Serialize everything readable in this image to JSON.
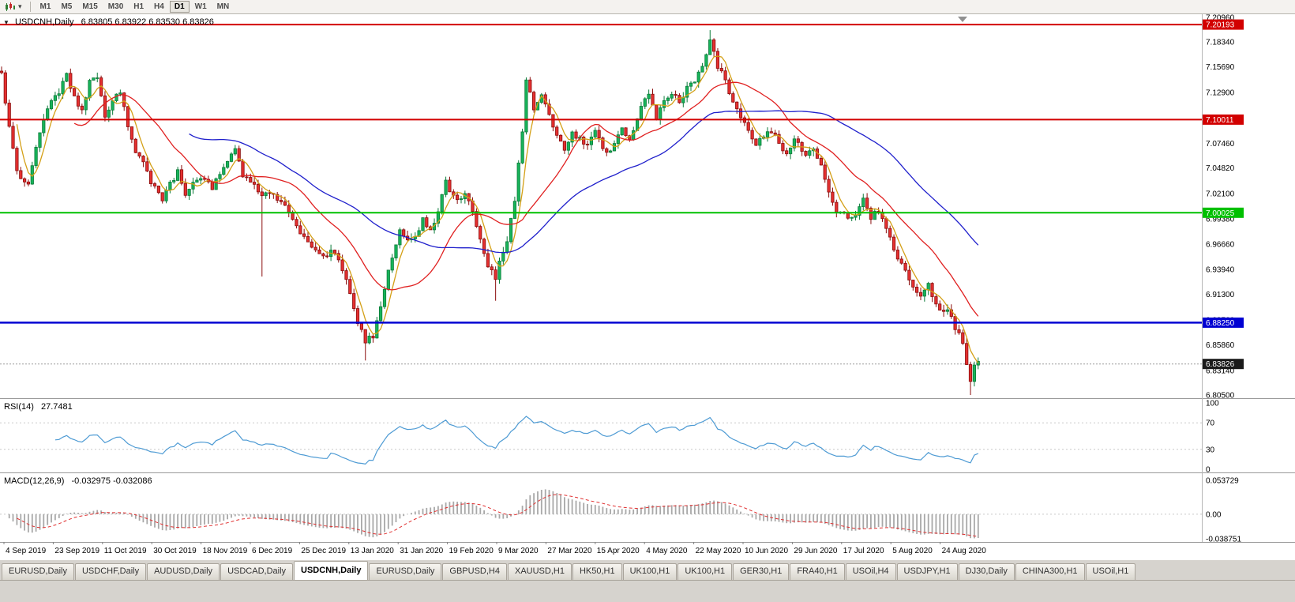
{
  "toolbar": {
    "timeframes": [
      "M1",
      "M5",
      "M15",
      "M30",
      "H1",
      "H4",
      "D1",
      "W1",
      "MN"
    ],
    "active_timeframe": "D1",
    "dropdown_icon": "▾"
  },
  "chart": {
    "title": "USDCNH,Daily",
    "ohlc_text": "6.83805 6.83922 6.83530 6.83826",
    "collapse_icon": "▼"
  },
  "price_axis_ticks": [
    "7.20960",
    "7.18340",
    "7.15690",
    "7.12900",
    "7.10070",
    "7.07460",
    "7.04820",
    "7.02100",
    "6.99380",
    "6.96660",
    "6.93940",
    "6.91300",
    "6.88560",
    "6.85860",
    "6.83140",
    "6.80500"
  ],
  "levels": [
    {
      "price": 7.20193,
      "label": "7.20193",
      "color": "#d20000",
      "line_width": 2,
      "style": "line"
    },
    {
      "price": 7.10011,
      "label": "7.10011",
      "color": "#d20000",
      "line_width": 2,
      "style": "line"
    },
    {
      "price": 7.00025,
      "label": "7.00025",
      "color": "#00c000",
      "line_width": 2,
      "style": "line"
    },
    {
      "price": 6.8825,
      "label": "6.88250",
      "color": "#0000d2",
      "line_width": 2.5,
      "style": "line"
    },
    {
      "price": 6.83826,
      "label": "6.83826",
      "color": "#1a1a1a",
      "line_width": 1,
      "style": "current"
    }
  ],
  "rsi_panel": {
    "name": "RSI(14)",
    "value": "27.7481",
    "period": 14,
    "axis_labels": [
      {
        "v": 100,
        "t": "100"
      },
      {
        "v": 70,
        "t": "70"
      },
      {
        "v": 30,
        "t": "30"
      },
      {
        "v": 0,
        "t": "0"
      }
    ],
    "guide_levels": [
      70,
      30
    ],
    "line_color": "#4e9bd4"
  },
  "macd_panel": {
    "name": "MACD(12,26,9)",
    "values": "-0.032975 -0.032086",
    "fast": 12,
    "slow": 26,
    "signal": 9,
    "axis_labels": [
      {
        "v": 0.053729,
        "t": "0.053729"
      },
      {
        "v": 0,
        "t": "0.00"
      },
      {
        "v": -0.038751,
        "t": "-0.038751"
      }
    ],
    "hist_color": "#a8a8a8",
    "signal_color": "#e03030"
  },
  "time_axis": [
    "4 Sep 2019",
    "23 Sep 2019",
    "11 Oct 2019",
    "30 Oct 2019",
    "18 Nov 2019",
    "6 Dec 2019",
    "25 Dec 2019",
    "13 Jan 2020",
    "31 Jan 2020",
    "19 Feb 2020",
    "9 Mar 2020",
    "27 Mar 2020",
    "15 Apr 2020",
    "4 May 2020",
    "22 May 2020",
    "10 Jun 2020",
    "29 Jun 2020",
    "17 Jul 2020",
    "5 Aug 2020",
    "24 Aug 2020"
  ],
  "tabs": [
    "EURUSD,Daily",
    "USDCHF,Daily",
    "AUDUSD,Daily",
    "USDCAD,Daily",
    "USDCNH,Daily",
    "EURUSD,Daily",
    "GBPUSD,H4",
    "XAUUSD,H1",
    "HK50,H1",
    "UK100,H1",
    "UK100,H1",
    "GER30,H1",
    "FRA40,H1",
    "USOil,H4",
    "USDJPY,H1",
    "DJ30,Daily",
    "CHINA300,H1",
    "USOil,H1"
  ],
  "active_tab_index": 4,
  "chart_data": {
    "type": "candlestick",
    "symbol": "USDCNH",
    "timeframe": "Daily",
    "num_candles": 256,
    "price_min": 6.805,
    "price_max": 7.2096,
    "last_ohlc": {
      "open": 6.83805,
      "high": 6.83922,
      "low": 6.8353,
      "close": 6.83826
    },
    "close_anchors": [
      [
        0,
        7.148
      ],
      [
        2,
        7.09
      ],
      [
        4,
        7.042
      ],
      [
        7,
        7.03
      ],
      [
        9,
        7.072
      ],
      [
        11,
        7.1
      ],
      [
        13,
        7.118
      ],
      [
        15,
        7.128
      ],
      [
        17,
        7.148
      ],
      [
        19,
        7.122
      ],
      [
        21,
        7.11
      ],
      [
        23,
        7.14
      ],
      [
        25,
        7.148
      ],
      [
        27,
        7.102
      ],
      [
        29,
        7.118
      ],
      [
        31,
        7.132
      ],
      [
        33,
        7.092
      ],
      [
        35,
        7.063
      ],
      [
        37,
        7.052
      ],
      [
        39,
        7.032
      ],
      [
        42,
        7.016
      ],
      [
        44,
        7.03
      ],
      [
        46,
        7.044
      ],
      [
        48,
        7.022
      ],
      [
        50,
        7.03
      ],
      [
        52,
        7.035
      ],
      [
        55,
        7.028
      ],
      [
        58,
        7.048
      ],
      [
        61,
        7.068
      ],
      [
        63,
        7.042
      ],
      [
        65,
        7.036
      ],
      [
        68,
        7.02
      ],
      [
        70,
        7.024
      ],
      [
        73,
        7.012
      ],
      [
        76,
        6.992
      ],
      [
        78,
        6.976
      ],
      [
        81,
        6.966
      ],
      [
        84,
        6.956
      ],
      [
        87,
        6.958
      ],
      [
        89,
        6.94
      ],
      [
        91,
        6.916
      ],
      [
        93,
        6.882
      ],
      [
        95,
        6.862
      ],
      [
        97,
        6.868
      ],
      [
        99,
        6.9
      ],
      [
        101,
        6.94
      ],
      [
        103,
        6.968
      ],
      [
        104,
        6.98
      ],
      [
        106,
        6.972
      ],
      [
        108,
        6.976
      ],
      [
        110,
        6.992
      ],
      [
        112,
        6.982
      ],
      [
        114,
        7.002
      ],
      [
        116,
        7.032
      ],
      [
        117,
        7.026
      ],
      [
        119,
        7.012
      ],
      [
        121,
        7.02
      ],
      [
        123,
        7.0
      ],
      [
        125,
        6.972
      ],
      [
        127,
        6.944
      ],
      [
        129,
        6.93
      ],
      [
        130,
        6.95
      ],
      [
        132,
        6.972
      ],
      [
        134,
        7.012
      ],
      [
        136,
        7.09
      ],
      [
        137,
        7.142
      ],
      [
        139,
        7.112
      ],
      [
        141,
        7.128
      ],
      [
        143,
        7.102
      ],
      [
        145,
        7.082
      ],
      [
        147,
        7.066
      ],
      [
        149,
        7.088
      ],
      [
        151,
        7.078
      ],
      [
        153,
        7.07
      ],
      [
        155,
        7.088
      ],
      [
        156,
        7.08
      ],
      [
        158,
        7.062
      ],
      [
        160,
        7.076
      ],
      [
        162,
        7.088
      ],
      [
        164,
        7.08
      ],
      [
        166,
        7.1
      ],
      [
        168,
        7.124
      ],
      [
        169,
        7.128
      ],
      [
        171,
        7.102
      ],
      [
        173,
        7.118
      ],
      [
        175,
        7.128
      ],
      [
        177,
        7.12
      ],
      [
        179,
        7.134
      ],
      [
        181,
        7.142
      ],
      [
        182,
        7.148
      ],
      [
        184,
        7.172
      ],
      [
        185,
        7.185
      ],
      [
        187,
        7.158
      ],
      [
        189,
        7.14
      ],
      [
        191,
        7.12
      ],
      [
        193,
        7.1
      ],
      [
        195,
        7.088
      ],
      [
        197,
        7.076
      ],
      [
        199,
        7.082
      ],
      [
        201,
        7.088
      ],
      [
        203,
        7.074
      ],
      [
        205,
        7.06
      ],
      [
        207,
        7.078
      ],
      [
        208,
        7.074
      ],
      [
        210,
        7.064
      ],
      [
        212,
        7.07
      ],
      [
        214,
        7.052
      ],
      [
        216,
        7.02
      ],
      [
        218,
        6.998
      ],
      [
        220,
        7.004
      ],
      [
        221,
        6.992
      ],
      [
        223,
        7.0
      ],
      [
        225,
        7.014
      ],
      [
        227,
        6.996
      ],
      [
        229,
        7.002
      ],
      [
        231,
        6.98
      ],
      [
        233,
        6.962
      ],
      [
        234,
        6.952
      ],
      [
        236,
        6.94
      ],
      [
        238,
        6.922
      ],
      [
        240,
        6.91
      ],
      [
        242,
        6.924
      ],
      [
        244,
        6.902
      ],
      [
        246,
        6.892
      ],
      [
        247,
        6.896
      ],
      [
        249,
        6.878
      ],
      [
        251,
        6.862
      ],
      [
        253,
        6.82
      ],
      [
        254,
        6.834
      ],
      [
        255,
        6.838
      ]
    ],
    "wick_events": [
      {
        "i": 68,
        "low": 6.932
      },
      {
        "i": 95,
        "low": 6.842
      },
      {
        "i": 129,
        "low": 6.906
      },
      {
        "i": 185,
        "high": 7.196
      },
      {
        "i": 253,
        "low": 6.805
      }
    ],
    "moving_averages": [
      {
        "type": "sma",
        "period": 5,
        "color": "#d4a017"
      },
      {
        "type": "sma",
        "period": 20,
        "color": "#e02020"
      },
      {
        "type": "sma",
        "period": 50,
        "color": "#2020cc"
      }
    ],
    "up_color": "#0a7a38",
    "up_fill": "#17b45a",
    "down_color": "#8a0b0b",
    "down_fill": "#e53030"
  }
}
